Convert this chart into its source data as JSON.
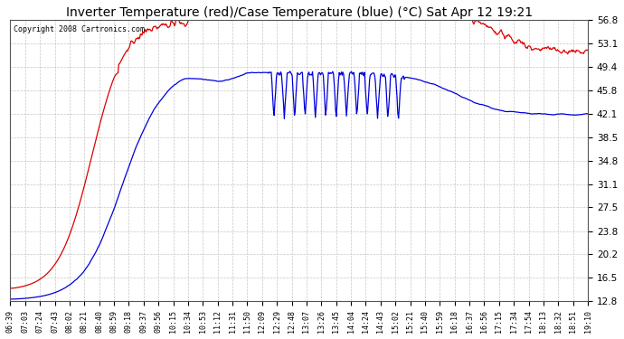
{
  "title": "Inverter Temperature (red)/Case Temperature (blue) (°C) Sat Apr 12 19:21",
  "copyright": "Copyright 2008 Cartronics.com",
  "bg_color": "#ffffff",
  "plot_bg_color": "#ffffff",
  "grid_color": "#c0c0c0",
  "red_color": "#dd0000",
  "blue_color": "#0000dd",
  "ylim": [
    12.8,
    56.8
  ],
  "yticks": [
    12.8,
    16.5,
    20.2,
    23.8,
    27.5,
    31.1,
    34.8,
    38.5,
    42.1,
    45.8,
    49.4,
    53.1,
    56.8
  ],
  "xtick_labels": [
    "06:39",
    "07:03",
    "07:24",
    "07:43",
    "08:02",
    "08:21",
    "08:40",
    "08:59",
    "09:18",
    "09:37",
    "09:56",
    "10:15",
    "10:34",
    "10:53",
    "11:12",
    "11:31",
    "11:50",
    "12:09",
    "12:29",
    "12:48",
    "13:07",
    "13:26",
    "13:45",
    "14:04",
    "14:24",
    "14:43",
    "15:02",
    "15:21",
    "15:40",
    "15:59",
    "16:18",
    "16:37",
    "16:56",
    "17:15",
    "17:34",
    "17:54",
    "18:13",
    "18:32",
    "18:51",
    "19:10"
  ],
  "figsize": [
    6.9,
    3.75
  ],
  "dpi": 100
}
